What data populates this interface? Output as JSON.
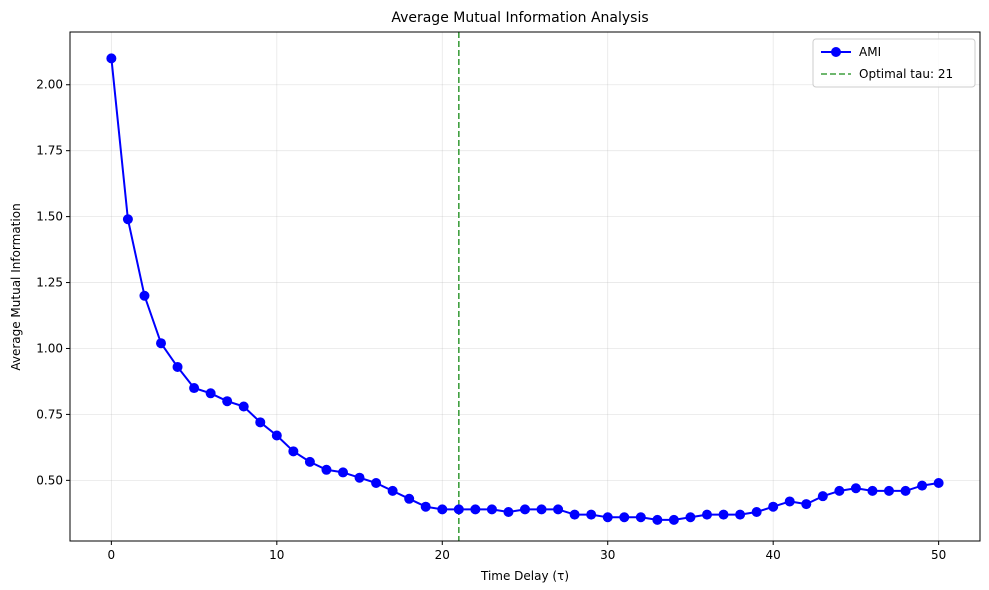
{
  "chart_data": {
    "type": "line",
    "title": "Average Mutual Information Analysis",
    "xlabel": "Time Delay (τ)",
    "ylabel": "Average Mutual Information",
    "xlim": [
      -2.5,
      52.5
    ],
    "ylim": [
      0.27,
      2.2
    ],
    "xticks": [
      0,
      10,
      20,
      30,
      40,
      50
    ],
    "xtick_labels": [
      "0",
      "10",
      "20",
      "30",
      "40",
      "50"
    ],
    "yticks": [
      0.5,
      0.75,
      1.0,
      1.25,
      1.5,
      1.75,
      2.0
    ],
    "ytick_labels": [
      "0.50",
      "0.75",
      "1.00",
      "1.25",
      "1.50",
      "1.75",
      "2.00"
    ],
    "grid": true,
    "legend_position": "top-right",
    "series": [
      {
        "name": "AMI",
        "color": "#0000ff",
        "marker": "circle",
        "x": [
          0,
          1,
          2,
          3,
          4,
          5,
          6,
          7,
          8,
          9,
          10,
          11,
          12,
          13,
          14,
          15,
          16,
          17,
          18,
          19,
          20,
          21,
          22,
          23,
          24,
          25,
          26,
          27,
          28,
          29,
          30,
          31,
          32,
          33,
          34,
          35,
          36,
          37,
          38,
          39,
          40,
          41,
          42,
          43,
          44,
          45,
          46,
          47,
          48,
          49,
          50
        ],
        "y": [
          2.1,
          1.49,
          1.2,
          1.02,
          0.93,
          0.85,
          0.83,
          0.8,
          0.78,
          0.72,
          0.67,
          0.61,
          0.57,
          0.54,
          0.53,
          0.51,
          0.49,
          0.46,
          0.43,
          0.4,
          0.39,
          0.39,
          0.39,
          0.39,
          0.38,
          0.39,
          0.39,
          0.39,
          0.37,
          0.37,
          0.36,
          0.36,
          0.36,
          0.35,
          0.35,
          0.36,
          0.37,
          0.37,
          0.37,
          0.38,
          0.4,
          0.42,
          0.41,
          0.44,
          0.46,
          0.47,
          0.46,
          0.46,
          0.46,
          0.48,
          0.49
        ]
      }
    ],
    "vline": {
      "x": 21,
      "label": "Optimal tau: 21",
      "color": "#3f9f3f",
      "style": "dashed"
    }
  }
}
